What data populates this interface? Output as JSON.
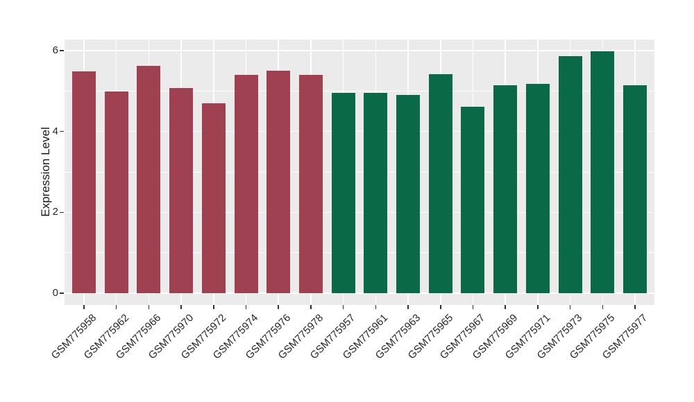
{
  "chart_data": {
    "type": "bar",
    "title": "",
    "xlabel": "",
    "ylabel": "Expression Level",
    "ylim": [
      -0.29,
      6.28
    ],
    "y_ticks": {
      "values": [
        0,
        2,
        4,
        6
      ],
      "labels": [
        "0",
        "2",
        "4",
        "6"
      ]
    },
    "y_minor_ticks": [
      1,
      3,
      5
    ],
    "grid": "on",
    "legend": "none",
    "panel_background": "#EBEBEB",
    "gridline_color": "#FFFFFF",
    "categories": [
      "GSM775958",
      "GSM775962",
      "GSM775966",
      "GSM775970",
      "GSM775972",
      "GSM775974",
      "GSM775976",
      "GSM775978",
      "GSM775957",
      "GSM775961",
      "GSM775963",
      "GSM775965",
      "GSM775967",
      "GSM775969",
      "GSM775971",
      "GSM775973",
      "GSM775975",
      "GSM775977"
    ],
    "values": [
      5.48,
      4.99,
      5.63,
      5.07,
      4.69,
      5.4,
      5.51,
      5.4,
      4.95,
      4.96,
      4.91,
      5.41,
      4.62,
      5.14,
      5.17,
      5.87,
      5.98,
      5.15
    ],
    "groups": [
      "group1",
      "group1",
      "group1",
      "group1",
      "group1",
      "group1",
      "group1",
      "group1",
      "group2",
      "group2",
      "group2",
      "group2",
      "group2",
      "group2",
      "group2",
      "group2",
      "group2",
      "group2"
    ],
    "group_colors": {
      "group1": "#9F4150",
      "group2": "#0A6946"
    }
  }
}
